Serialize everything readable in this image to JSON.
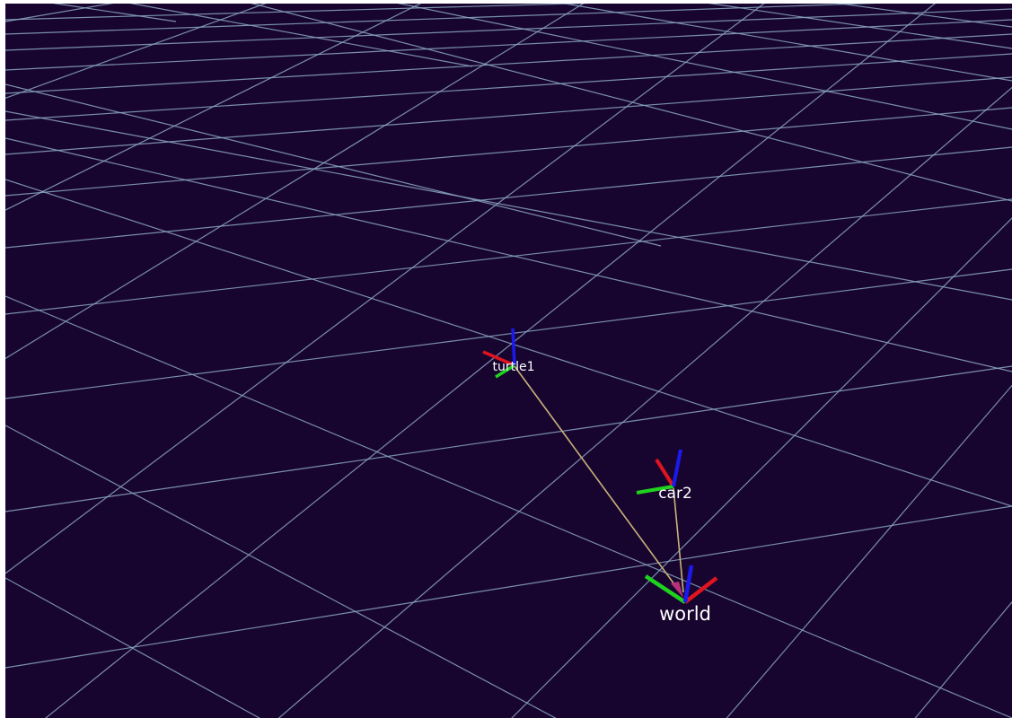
{
  "view": {
    "background_color": "#18052f",
    "grid_color": "#8aa6c4",
    "tf_link_color": "#c9b27a"
  },
  "frames": [
    {
      "id": "world",
      "label": "world"
    },
    {
      "id": "car2",
      "label": "car2"
    },
    {
      "id": "turtle1",
      "label": "turtle1"
    }
  ],
  "axis_colors": {
    "x": "#e0141e",
    "y": "#1ed21e",
    "z": "#1a1aee"
  }
}
